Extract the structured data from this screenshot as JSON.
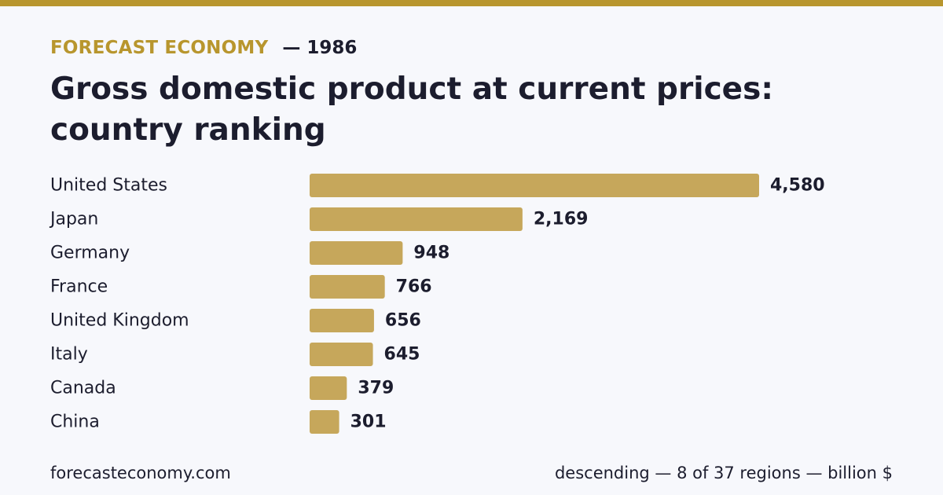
{
  "colors": {
    "accent": "#b8962e",
    "bar": "#c6a75b",
    "text": "#1c1d2e",
    "background": "#f7f8fc"
  },
  "header": {
    "brand": "FORECAST ECONOMY",
    "year_label": "— 1986"
  },
  "title": "Gross domestic product at current prices: country ranking",
  "footer": {
    "site": "forecasteconomy.com",
    "note": "descending — 8 of 37 regions — billion $"
  },
  "chart_data": {
    "type": "bar",
    "orientation": "horizontal",
    "categories": [
      "United States",
      "Japan",
      "Germany",
      "France",
      "United Kingdom",
      "Italy",
      "Canada",
      "China"
    ],
    "values": [
      4580,
      2169,
      948,
      766,
      656,
      645,
      379,
      301
    ],
    "value_labels": [
      "4,580",
      "2,169",
      "948",
      "766",
      "656",
      "645",
      "379",
      "301"
    ],
    "xlim": [
      0,
      4580
    ],
    "grid": false,
    "legend": "none"
  }
}
